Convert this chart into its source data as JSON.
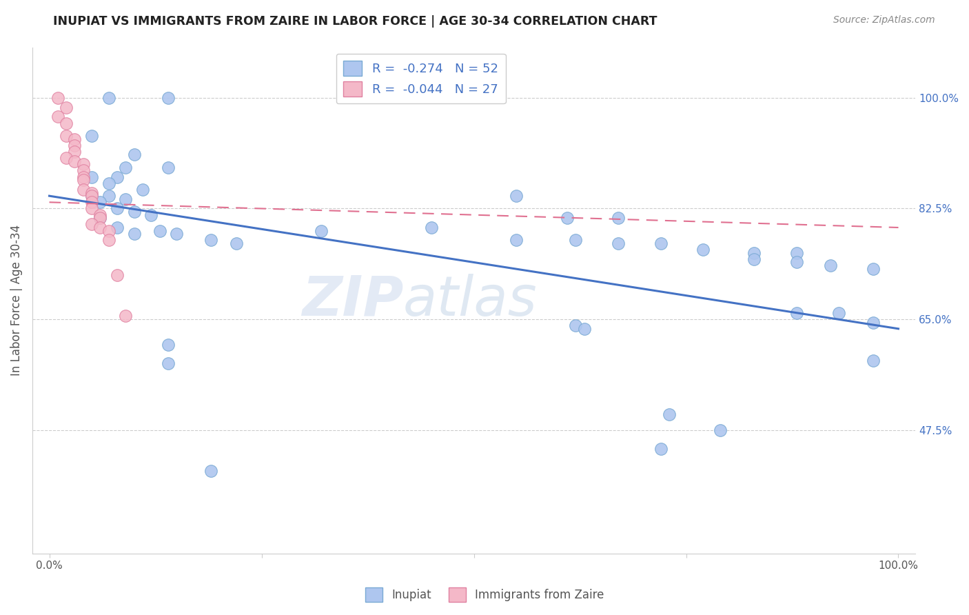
{
  "title": "INUPIAT VS IMMIGRANTS FROM ZAIRE IN LABOR FORCE | AGE 30-34 CORRELATION CHART",
  "source": "Source: ZipAtlas.com",
  "ylabel": "In Labor Force | Age 30-34",
  "xlim": [
    0.0,
    1.0
  ],
  "ylim": [
    0.28,
    1.08
  ],
  "ytick_labels_right": [
    "100.0%",
    "82.5%",
    "65.0%",
    "47.5%"
  ],
  "ytick_vals_right": [
    1.0,
    0.825,
    0.65,
    0.475
  ],
  "legend_color1": "#aec6ef",
  "legend_color2": "#f4b8c8",
  "trendline_blue": [
    0.0,
    0.845,
    1.0,
    0.635
  ],
  "trendline_pink": [
    0.0,
    0.835,
    1.0,
    0.795
  ],
  "watermark_zip": "ZIP",
  "watermark_atlas": "atlas",
  "bg_color": "#ffffff",
  "grid_color": "#cccccc",
  "inupiat_points": [
    [
      0.07,
      1.0
    ],
    [
      0.14,
      1.0
    ],
    [
      0.05,
      0.94
    ],
    [
      0.1,
      0.91
    ],
    [
      0.09,
      0.89
    ],
    [
      0.14,
      0.89
    ],
    [
      0.05,
      0.875
    ],
    [
      0.08,
      0.875
    ],
    [
      0.07,
      0.865
    ],
    [
      0.11,
      0.855
    ],
    [
      0.05,
      0.845
    ],
    [
      0.07,
      0.845
    ],
    [
      0.09,
      0.84
    ],
    [
      0.06,
      0.835
    ],
    [
      0.08,
      0.825
    ],
    [
      0.1,
      0.82
    ],
    [
      0.12,
      0.815
    ],
    [
      0.06,
      0.81
    ],
    [
      0.08,
      0.795
    ],
    [
      0.13,
      0.79
    ],
    [
      0.1,
      0.785
    ],
    [
      0.15,
      0.785
    ],
    [
      0.19,
      0.775
    ],
    [
      0.22,
      0.77
    ],
    [
      0.32,
      0.79
    ],
    [
      0.45,
      0.795
    ],
    [
      0.55,
      0.845
    ],
    [
      0.61,
      0.81
    ],
    [
      0.67,
      0.81
    ],
    [
      0.55,
      0.775
    ],
    [
      0.62,
      0.775
    ],
    [
      0.67,
      0.77
    ],
    [
      0.72,
      0.77
    ],
    [
      0.77,
      0.76
    ],
    [
      0.83,
      0.755
    ],
    [
      0.88,
      0.755
    ],
    [
      0.83,
      0.745
    ],
    [
      0.88,
      0.74
    ],
    [
      0.92,
      0.735
    ],
    [
      0.97,
      0.73
    ],
    [
      0.88,
      0.66
    ],
    [
      0.93,
      0.66
    ],
    [
      0.97,
      0.645
    ],
    [
      0.62,
      0.64
    ],
    [
      0.63,
      0.635
    ],
    [
      0.97,
      0.585
    ],
    [
      0.73,
      0.5
    ],
    [
      0.79,
      0.475
    ],
    [
      0.72,
      0.445
    ],
    [
      0.19,
      0.41
    ],
    [
      0.14,
      0.61
    ],
    [
      0.14,
      0.58
    ]
  ],
  "zaire_points": [
    [
      0.01,
      1.0
    ],
    [
      0.02,
      0.985
    ],
    [
      0.01,
      0.97
    ],
    [
      0.02,
      0.96
    ],
    [
      0.02,
      0.94
    ],
    [
      0.03,
      0.935
    ],
    [
      0.03,
      0.925
    ],
    [
      0.03,
      0.915
    ],
    [
      0.02,
      0.905
    ],
    [
      0.03,
      0.9
    ],
    [
      0.04,
      0.895
    ],
    [
      0.04,
      0.885
    ],
    [
      0.04,
      0.875
    ],
    [
      0.04,
      0.87
    ],
    [
      0.04,
      0.855
    ],
    [
      0.05,
      0.85
    ],
    [
      0.05,
      0.845
    ],
    [
      0.05,
      0.835
    ],
    [
      0.05,
      0.825
    ],
    [
      0.06,
      0.815
    ],
    [
      0.06,
      0.81
    ],
    [
      0.05,
      0.8
    ],
    [
      0.06,
      0.795
    ],
    [
      0.07,
      0.79
    ],
    [
      0.07,
      0.775
    ],
    [
      0.08,
      0.72
    ],
    [
      0.09,
      0.655
    ]
  ]
}
